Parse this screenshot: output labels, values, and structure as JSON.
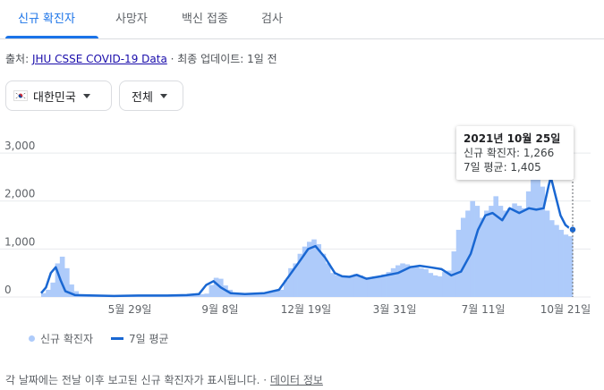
{
  "tabs": [
    {
      "label": "신규 확진자",
      "active": true
    },
    {
      "label": "사망자"
    },
    {
      "label": "백신 접종"
    },
    {
      "label": "검사"
    }
  ],
  "source": {
    "prefix": "출처: ",
    "link": "JHU CSSE COVID-19 Data",
    "sep": " · 최종 업데이트: 1일 전"
  },
  "filters": {
    "country": "대한민국",
    "range": "전체"
  },
  "colors": {
    "accent": "#1a73e8",
    "bars": "#aecbfa",
    "line": "#1967d2"
  },
  "tooltip": {
    "date": "2021년 10월 25일",
    "cases_label": "신규 확진자: 1,266",
    "avg_label": "7일 평균: 1,405"
  },
  "legend": {
    "cases": "신규 확진자",
    "avg": "7일 평균"
  },
  "footer": {
    "text": "각 날짜에는 전날 이후 보고된 신규 확진자가 표시됩니다. · ",
    "link": "데이터 정보"
  },
  "chart_data": {
    "type": "area",
    "y_ticks": [
      "3,000",
      "2,000",
      "1,000",
      "0"
    ],
    "ylim": [
      0,
      3300
    ],
    "x_ticks": [
      "5월 29일",
      "9월 8일",
      "12월 19일",
      "3월 31일",
      "7월 11일",
      "10월 21일"
    ],
    "series": [
      {
        "name": "7일 평균",
        "points": [
          [
            0,
            80
          ],
          [
            2,
            200
          ],
          [
            4,
            500
          ],
          [
            6,
            620
          ],
          [
            8,
            350
          ],
          [
            10,
            120
          ],
          [
            14,
            40
          ],
          [
            22,
            30
          ],
          [
            30,
            20
          ],
          [
            40,
            30
          ],
          [
            52,
            30
          ],
          [
            60,
            40
          ],
          [
            65,
            60
          ],
          [
            68,
            250
          ],
          [
            71,
            330
          ],
          [
            74,
            200
          ],
          [
            78,
            80
          ],
          [
            84,
            60
          ],
          [
            92,
            80
          ],
          [
            98,
            150
          ],
          [
            103,
            500
          ],
          [
            107,
            780
          ],
          [
            110,
            1000
          ],
          [
            113,
            1060
          ],
          [
            117,
            820
          ],
          [
            121,
            500
          ],
          [
            124,
            430
          ],
          [
            127,
            420
          ],
          [
            130,
            460
          ],
          [
            134,
            380
          ],
          [
            140,
            430
          ],
          [
            147,
            500
          ],
          [
            152,
            620
          ],
          [
            156,
            650
          ],
          [
            160,
            620
          ],
          [
            165,
            580
          ],
          [
            169,
            450
          ],
          [
            173,
            530
          ],
          [
            177,
            900
          ],
          [
            180,
            1400
          ],
          [
            183,
            1700
          ],
          [
            186,
            1750
          ],
          [
            190,
            1600
          ],
          [
            193,
            1850
          ],
          [
            197,
            1750
          ],
          [
            201,
            1850
          ],
          [
            204,
            1820
          ],
          [
            207,
            1850
          ],
          [
            209,
            2300
          ],
          [
            210,
            2500
          ],
          [
            212,
            2100
          ],
          [
            214,
            1700
          ],
          [
            216,
            1500
          ],
          [
            218,
            1420
          ],
          [
            219,
            1405
          ]
        ]
      }
    ],
    "cases_bars": [
      80,
      150,
      300,
      700,
      840,
      600,
      260,
      120,
      50,
      40,
      30,
      30,
      30,
      25,
      20,
      20,
      30,
      30,
      30,
      30,
      20,
      20,
      30,
      25,
      30,
      35,
      30,
      40,
      30,
      30,
      40,
      40,
      35,
      40,
      60,
      70,
      250,
      400,
      380,
      240,
      150,
      80,
      60,
      60,
      50,
      55,
      60,
      70,
      90,
      100,
      130,
      150,
      350,
      600,
      700,
      900,
      1050,
      1150,
      1200,
      1100,
      900,
      700,
      500,
      450,
      420,
      430,
      440,
      480,
      450,
      400,
      380,
      430,
      430,
      470,
      520,
      600,
      660,
      700,
      680,
      650,
      620,
      600,
      580,
      500,
      450,
      430,
      520,
      550,
      950,
      1400,
      1650,
      1800,
      2000,
      1900,
      1650,
      1800,
      1900,
      2100,
      1900,
      1800,
      1850,
      1950,
      1900,
      1850,
      2200,
      2500,
      3000,
      2300,
      1800,
      1600,
      1500,
      1400,
      1300,
      1266
    ]
  }
}
